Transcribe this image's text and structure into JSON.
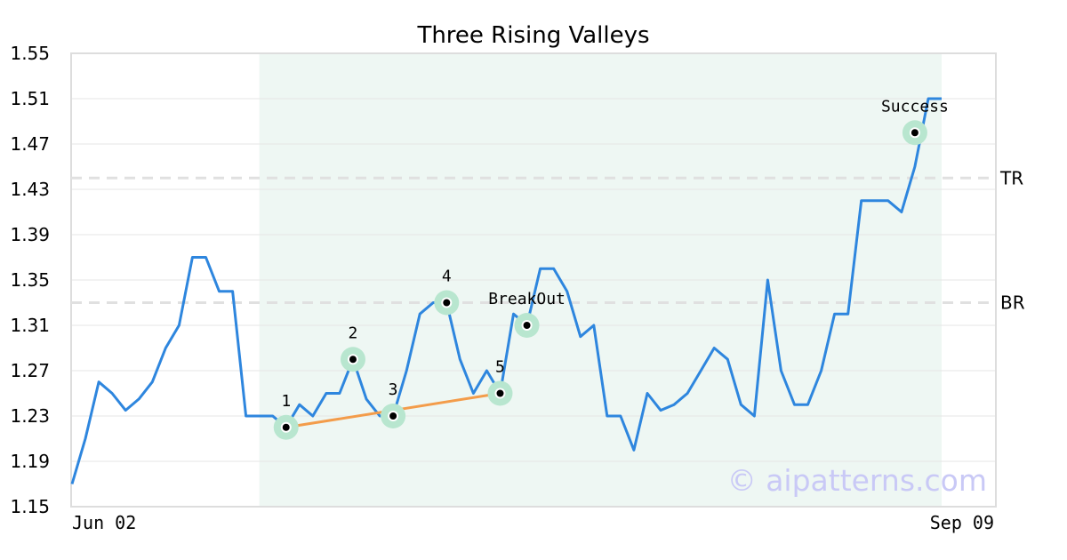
{
  "chart_data": {
    "type": "line",
    "title": "Three Rising Valleys",
    "ylim": [
      1.15,
      1.55
    ],
    "yticks": [
      "1.15",
      "1.19",
      "1.23",
      "1.27",
      "1.31",
      "1.35",
      "1.39",
      "1.43",
      "1.47",
      "1.51",
      "1.55"
    ],
    "x_tick_labels": [
      "Jun 02",
      "Sep 09"
    ],
    "grid": "horizontal",
    "series": [
      {
        "color": "#2e86de",
        "values": [
          1.17,
          1.21,
          1.26,
          1.25,
          1.235,
          1.245,
          1.26,
          1.29,
          1.31,
          1.37,
          1.37,
          1.34,
          1.34,
          1.23,
          1.23,
          1.23,
          1.22,
          1.24,
          1.23,
          1.25,
          1.25,
          1.28,
          1.245,
          1.23,
          1.23,
          1.27,
          1.32,
          1.33,
          1.33,
          1.28,
          1.25,
          1.27,
          1.25,
          1.32,
          1.31,
          1.36,
          1.36,
          1.34,
          1.3,
          1.31,
          1.23,
          1.23,
          1.2,
          1.25,
          1.235,
          1.24,
          1.25,
          1.27,
          1.29,
          1.28,
          1.24,
          1.23,
          1.35,
          1.27,
          1.24,
          1.24,
          1.27,
          1.32,
          1.32,
          1.42,
          1.42,
          1.42,
          1.41,
          1.45,
          1.51,
          1.51
        ]
      }
    ],
    "reference_lines": [
      {
        "label": "TR",
        "y": 1.44,
        "color": "#e0e0e0"
      },
      {
        "label": "BR",
        "y": 1.33,
        "color": "#e0e0e0"
      }
    ],
    "pattern_region": {
      "x_start": 14,
      "x_end": 65,
      "color": "#eef7f3"
    },
    "trendline": {
      "from": [
        16,
        1.22
      ],
      "to": [
        32,
        1.25
      ],
      "color": "#f39c4a"
    },
    "annotations": [
      {
        "label": "1",
        "x": 16,
        "y": 1.22,
        "position": "above"
      },
      {
        "label": "2",
        "x": 21,
        "y": 1.28,
        "position": "above"
      },
      {
        "label": "3",
        "x": 24,
        "y": 1.23,
        "position": "above"
      },
      {
        "label": "4",
        "x": 28,
        "y": 1.33,
        "position": "above"
      },
      {
        "label": "5",
        "x": 32,
        "y": 1.25,
        "position": "above"
      },
      {
        "label": "BreakOut",
        "x": 34,
        "y": 1.31,
        "position": "above"
      },
      {
        "label": "Success",
        "x": 63,
        "y": 1.48,
        "position": "above"
      }
    ],
    "marker_color": "#b8e6cf"
  },
  "watermark": "© aipatterns.com"
}
